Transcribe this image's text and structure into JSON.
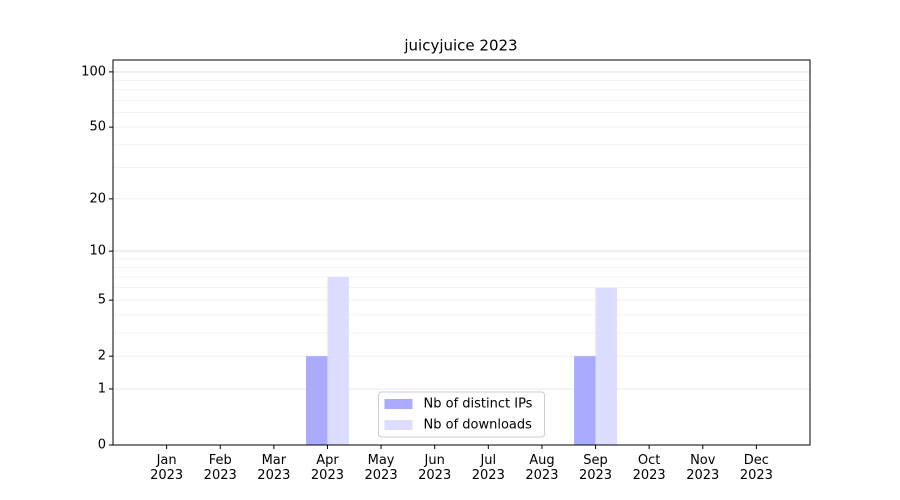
{
  "chart_data": {
    "type": "bar",
    "title": "juicyjuice 2023",
    "categories": [
      "Jan 2023",
      "Feb 2023",
      "Mar 2023",
      "Apr 2023",
      "May 2023",
      "Jun 2023",
      "Jul 2023",
      "Aug 2023",
      "Sep 2023",
      "Oct 2023",
      "Nov 2023",
      "Dec 2023"
    ],
    "series": [
      {
        "name": "Nb of distinct IPs",
        "color": "#aaaaff",
        "values": [
          0,
          0,
          0,
          2,
          0,
          0,
          0,
          0,
          2,
          0,
          0,
          0
        ]
      },
      {
        "name": "Nb of downloads",
        "color": "#ddddff",
        "values": [
          0,
          0,
          0,
          7,
          0,
          0,
          0,
          0,
          6,
          0,
          0,
          0
        ]
      }
    ],
    "y_scale": "log1p",
    "ylim": [
      0,
      116
    ],
    "yticks": [
      0,
      1,
      2,
      5,
      10,
      20,
      50,
      100
    ],
    "major_grid": [
      1,
      10,
      100
    ],
    "minor_yticks": [
      3,
      4,
      6,
      7,
      8,
      9,
      30,
      40,
      60,
      70,
      80,
      90
    ],
    "grid": true,
    "legend": "lower center"
  }
}
